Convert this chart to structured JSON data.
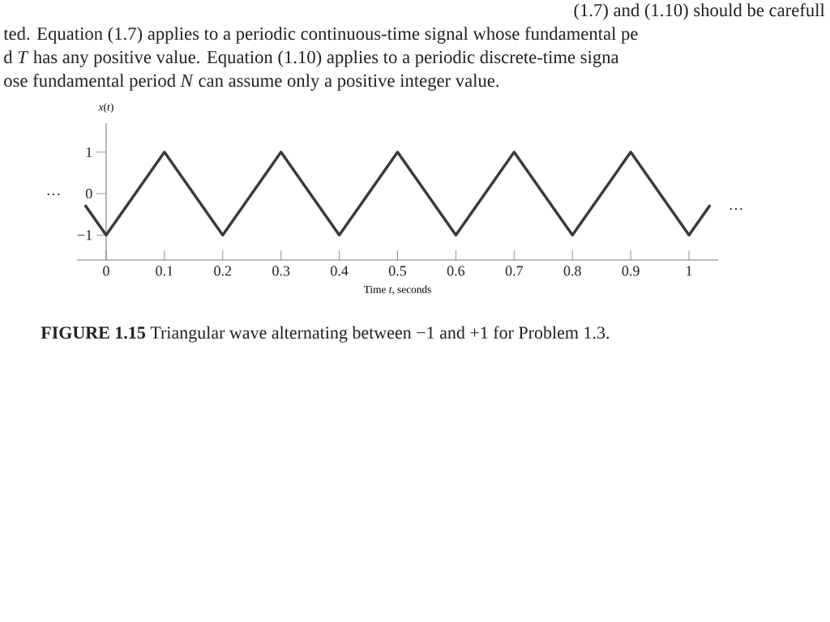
{
  "chart_data": {
    "type": "line",
    "title": "**FIGURE 1.15** Triangular wave alternating between −1 and +1 for Problem 1.3.",
    "xlabel": "Time *t*, seconds",
    "ylabel": "*x*(*t*)",
    "annotations": [
      "(1.7) and (1.10) should be carefull",
      "ted. Equation (1.7) applies to a periodic continuous-time signal whose fundamental pe",
      "d *T* has any positive value. Equation (1.10) applies to a periodic discrete-time signa",
      "ose fundamental period *N* can assume only a positive integer value.",
      "…",
      "…"
    ],
    "x": [
      -0.035,
      0,
      0.1,
      0.2,
      0.3,
      0.4,
      0.5,
      0.6,
      0.7,
      0.8,
      0.9,
      1,
      1.035
    ],
    "values": [
      -0.3,
      -1,
      1,
      -1,
      1,
      -1,
      1,
      -1,
      1,
      -1,
      1,
      -1,
      -0.3
    ],
    "color": "#3a3a3a",
    "xlim": [
      -0.05,
      1.05
    ],
    "ylim": [
      -1.6,
      1.7
    ],
    "xticks": [
      0,
      0.1,
      0.2,
      0.3,
      0.4,
      0.5,
      0.6,
      0.7,
      0.8,
      0.9,
      1
    ],
    "yticks": [
      {
        "value": -1,
        "label": "−1"
      },
      0,
      1
    ],
    "marker": "none",
    "line_style": "solid"
  }
}
